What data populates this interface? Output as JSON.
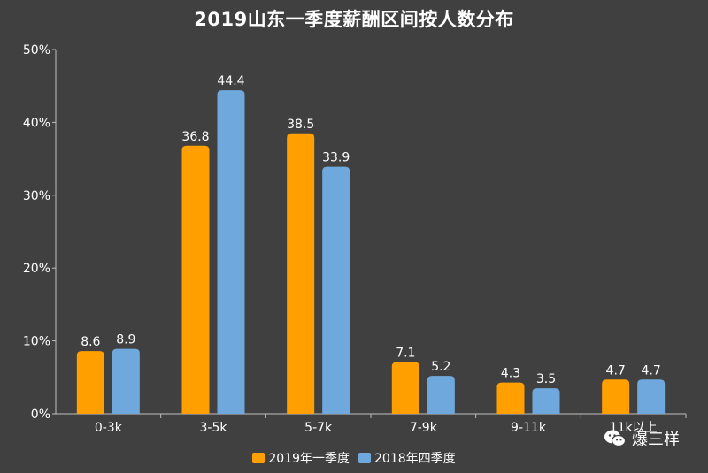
{
  "chart_data": {
    "type": "bar",
    "title": "2019山东一季度薪酬区间按人数分布",
    "categories": [
      "0-3k",
      "3-5k",
      "5-7k",
      "7-9k",
      "9-11k",
      "11k以上"
    ],
    "series": [
      {
        "name": "2019年一季度",
        "color": "#FF9F00",
        "values": [
          8.6,
          36.8,
          38.5,
          7.1,
          4.3,
          4.7
        ]
      },
      {
        "name": "2018年四季度",
        "color": "#6FA8DC",
        "values": [
          8.9,
          44.4,
          33.9,
          5.2,
          3.5,
          4.7
        ]
      }
    ],
    "yticks": [
      "0%",
      "10%",
      "20%",
      "30%",
      "40%",
      "50%"
    ],
    "ylim": [
      0,
      50
    ],
    "grid": false,
    "legend": "bottom-center",
    "xlabel": "",
    "ylabel": ""
  },
  "watermark": {
    "text": "爆三样",
    "icon": "wechat-icon"
  }
}
